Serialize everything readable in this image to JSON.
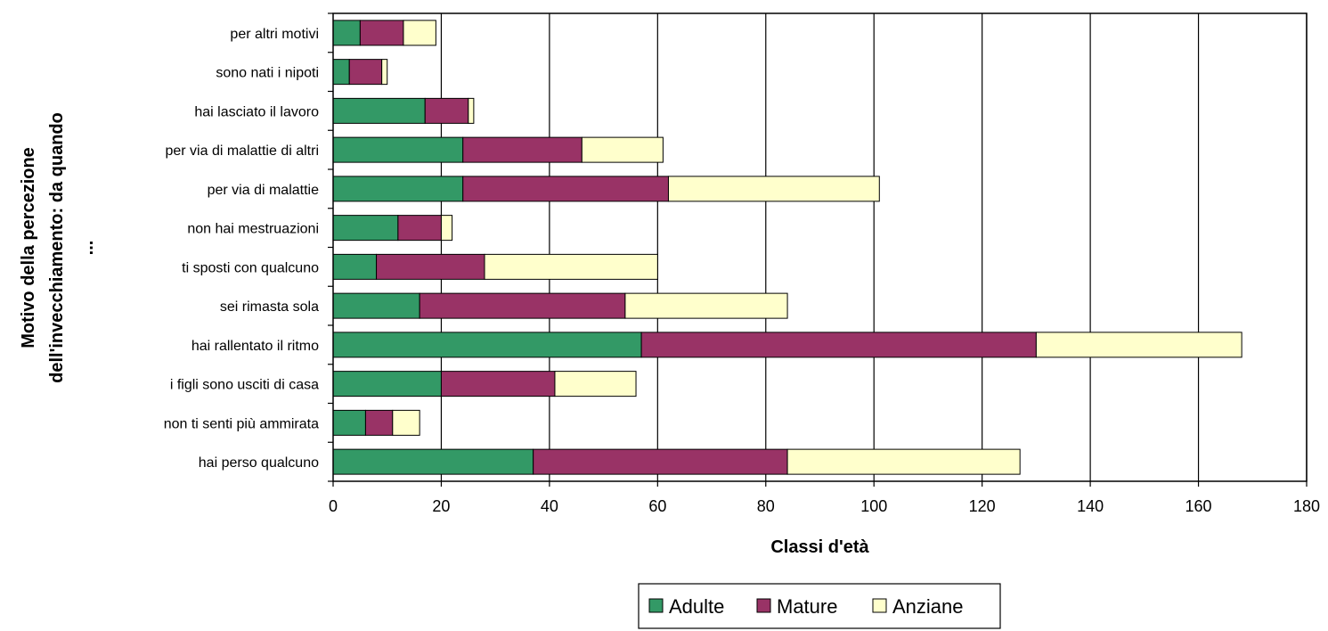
{
  "chart_data": {
    "type": "bar",
    "orientation": "horizontal",
    "stacked": true,
    "categories": [
      "hai perso qualcuno",
      "non ti senti più ammirata",
      "i figli sono usciti di casa",
      "hai rallentato il ritmo",
      "sei rimasta sola",
      "ti sposti con qualcuno",
      "non hai mestruazioni",
      "per via di malattie",
      "per via di malattie di altri",
      "hai lasciato il lavoro",
      "sono nati i nipoti",
      "per altri motivi"
    ],
    "series": [
      {
        "name": "Adulte",
        "color": "#339966",
        "values": [
          37,
          6,
          20,
          57,
          16,
          8,
          12,
          24,
          24,
          17,
          3,
          5
        ]
      },
      {
        "name": "Mature",
        "color": "#993366",
        "values": [
          47,
          5,
          21,
          73,
          38,
          20,
          8,
          38,
          22,
          8,
          6,
          8
        ]
      },
      {
        "name": "Anziane",
        "color": "#FFFFCC",
        "values": [
          43,
          5,
          15,
          38,
          30,
          32,
          2,
          39,
          15,
          1,
          1,
          6
        ]
      }
    ],
    "xlabel": "Classi d'età",
    "ylabel": [
      "Motivo della percezione",
      "dell'invecchiamento: da quando",
      "..."
    ],
    "xlim": [
      0,
      180
    ],
    "xticks": [
      0,
      20,
      40,
      60,
      80,
      100,
      120,
      140,
      160,
      180
    ],
    "grid": true,
    "legend_position": "bottom"
  }
}
